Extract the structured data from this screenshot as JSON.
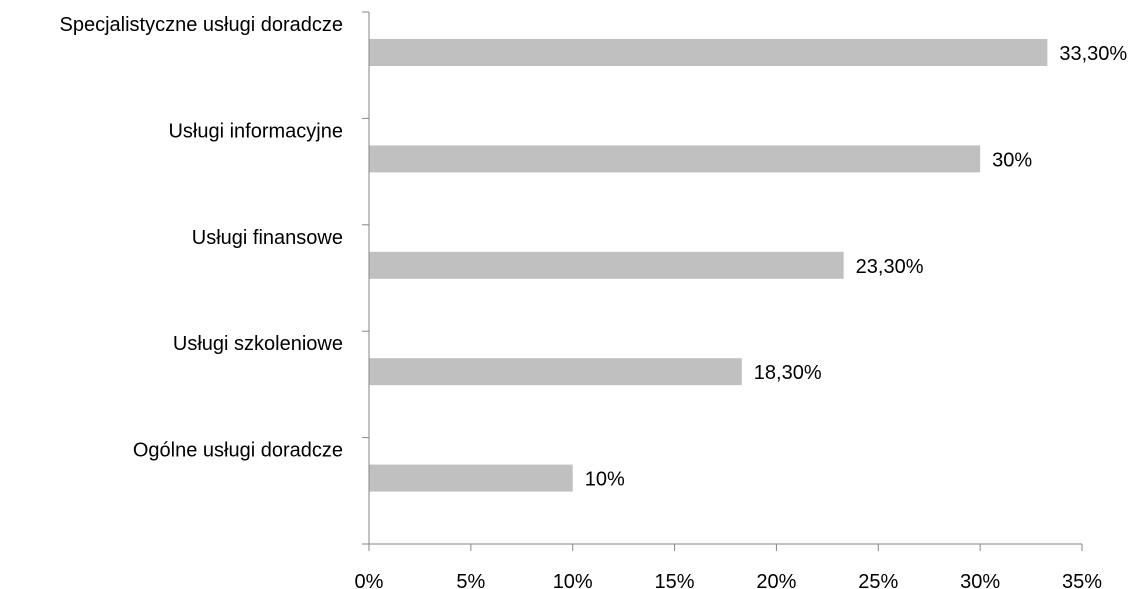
{
  "chart_data": {
    "type": "bar",
    "orientation": "horizontal",
    "categories": [
      "Specjalistyczne usługi doradcze",
      "Usługi informacyjne",
      "Usługi finansowe",
      "Usługi szkoleniowe",
      "Ogólne usługi doradcze"
    ],
    "values": [
      33.3,
      30,
      23.3,
      18.3,
      10
    ],
    "value_labels": [
      "33,30%",
      "30%",
      "23,30%",
      "18,30%",
      "10%"
    ],
    "x_ticks": [
      "0%",
      "5%",
      "10%",
      "15%",
      "20%",
      "25%",
      "30%",
      "35%"
    ],
    "x_tick_values": [
      0,
      5,
      10,
      15,
      20,
      25,
      30,
      35
    ],
    "xlim": [
      0,
      35
    ],
    "bar_color": "#c0c0c0",
    "axis_color": "#868686",
    "grid": false,
    "legend": "none"
  }
}
